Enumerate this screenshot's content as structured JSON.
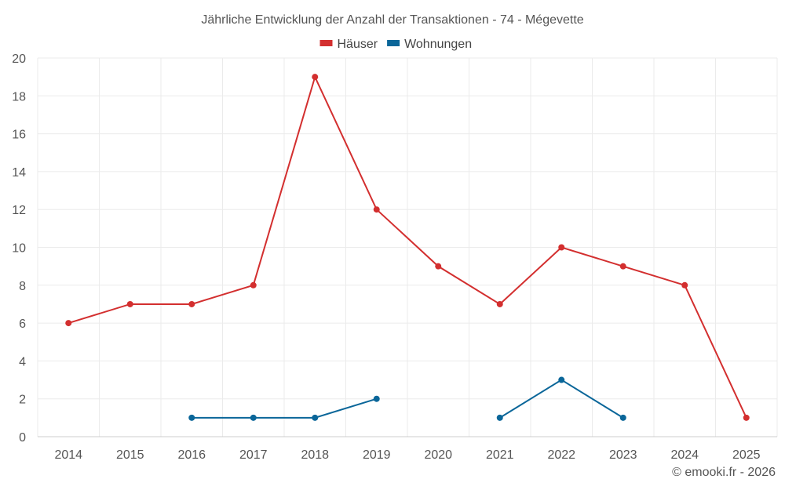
{
  "chart_data": {
    "type": "line",
    "title": "Jährliche Entwicklung der Anzahl der Transaktionen - 74 - Mégevette",
    "categories": [
      "2014",
      "2015",
      "2016",
      "2017",
      "2018",
      "2019",
      "2020",
      "2021",
      "2022",
      "2023",
      "2024",
      "2025"
    ],
    "ylim": [
      0,
      20
    ],
    "yticks": [
      0,
      2,
      4,
      6,
      8,
      10,
      12,
      14,
      16,
      18,
      20
    ],
    "grid": true,
    "legend_position": "top-center",
    "series": [
      {
        "name": "Häuser",
        "color": "#d32f2f",
        "values": [
          6,
          7,
          7,
          8,
          19,
          12,
          9,
          7,
          10,
          9,
          8,
          1
        ]
      },
      {
        "name": "Wohnungen",
        "color": "#0a6699",
        "values": [
          null,
          null,
          1,
          1,
          1,
          2,
          null,
          1,
          3,
          1,
          null,
          null
        ]
      }
    ]
  },
  "credit": "© emooki.fr - 2026"
}
